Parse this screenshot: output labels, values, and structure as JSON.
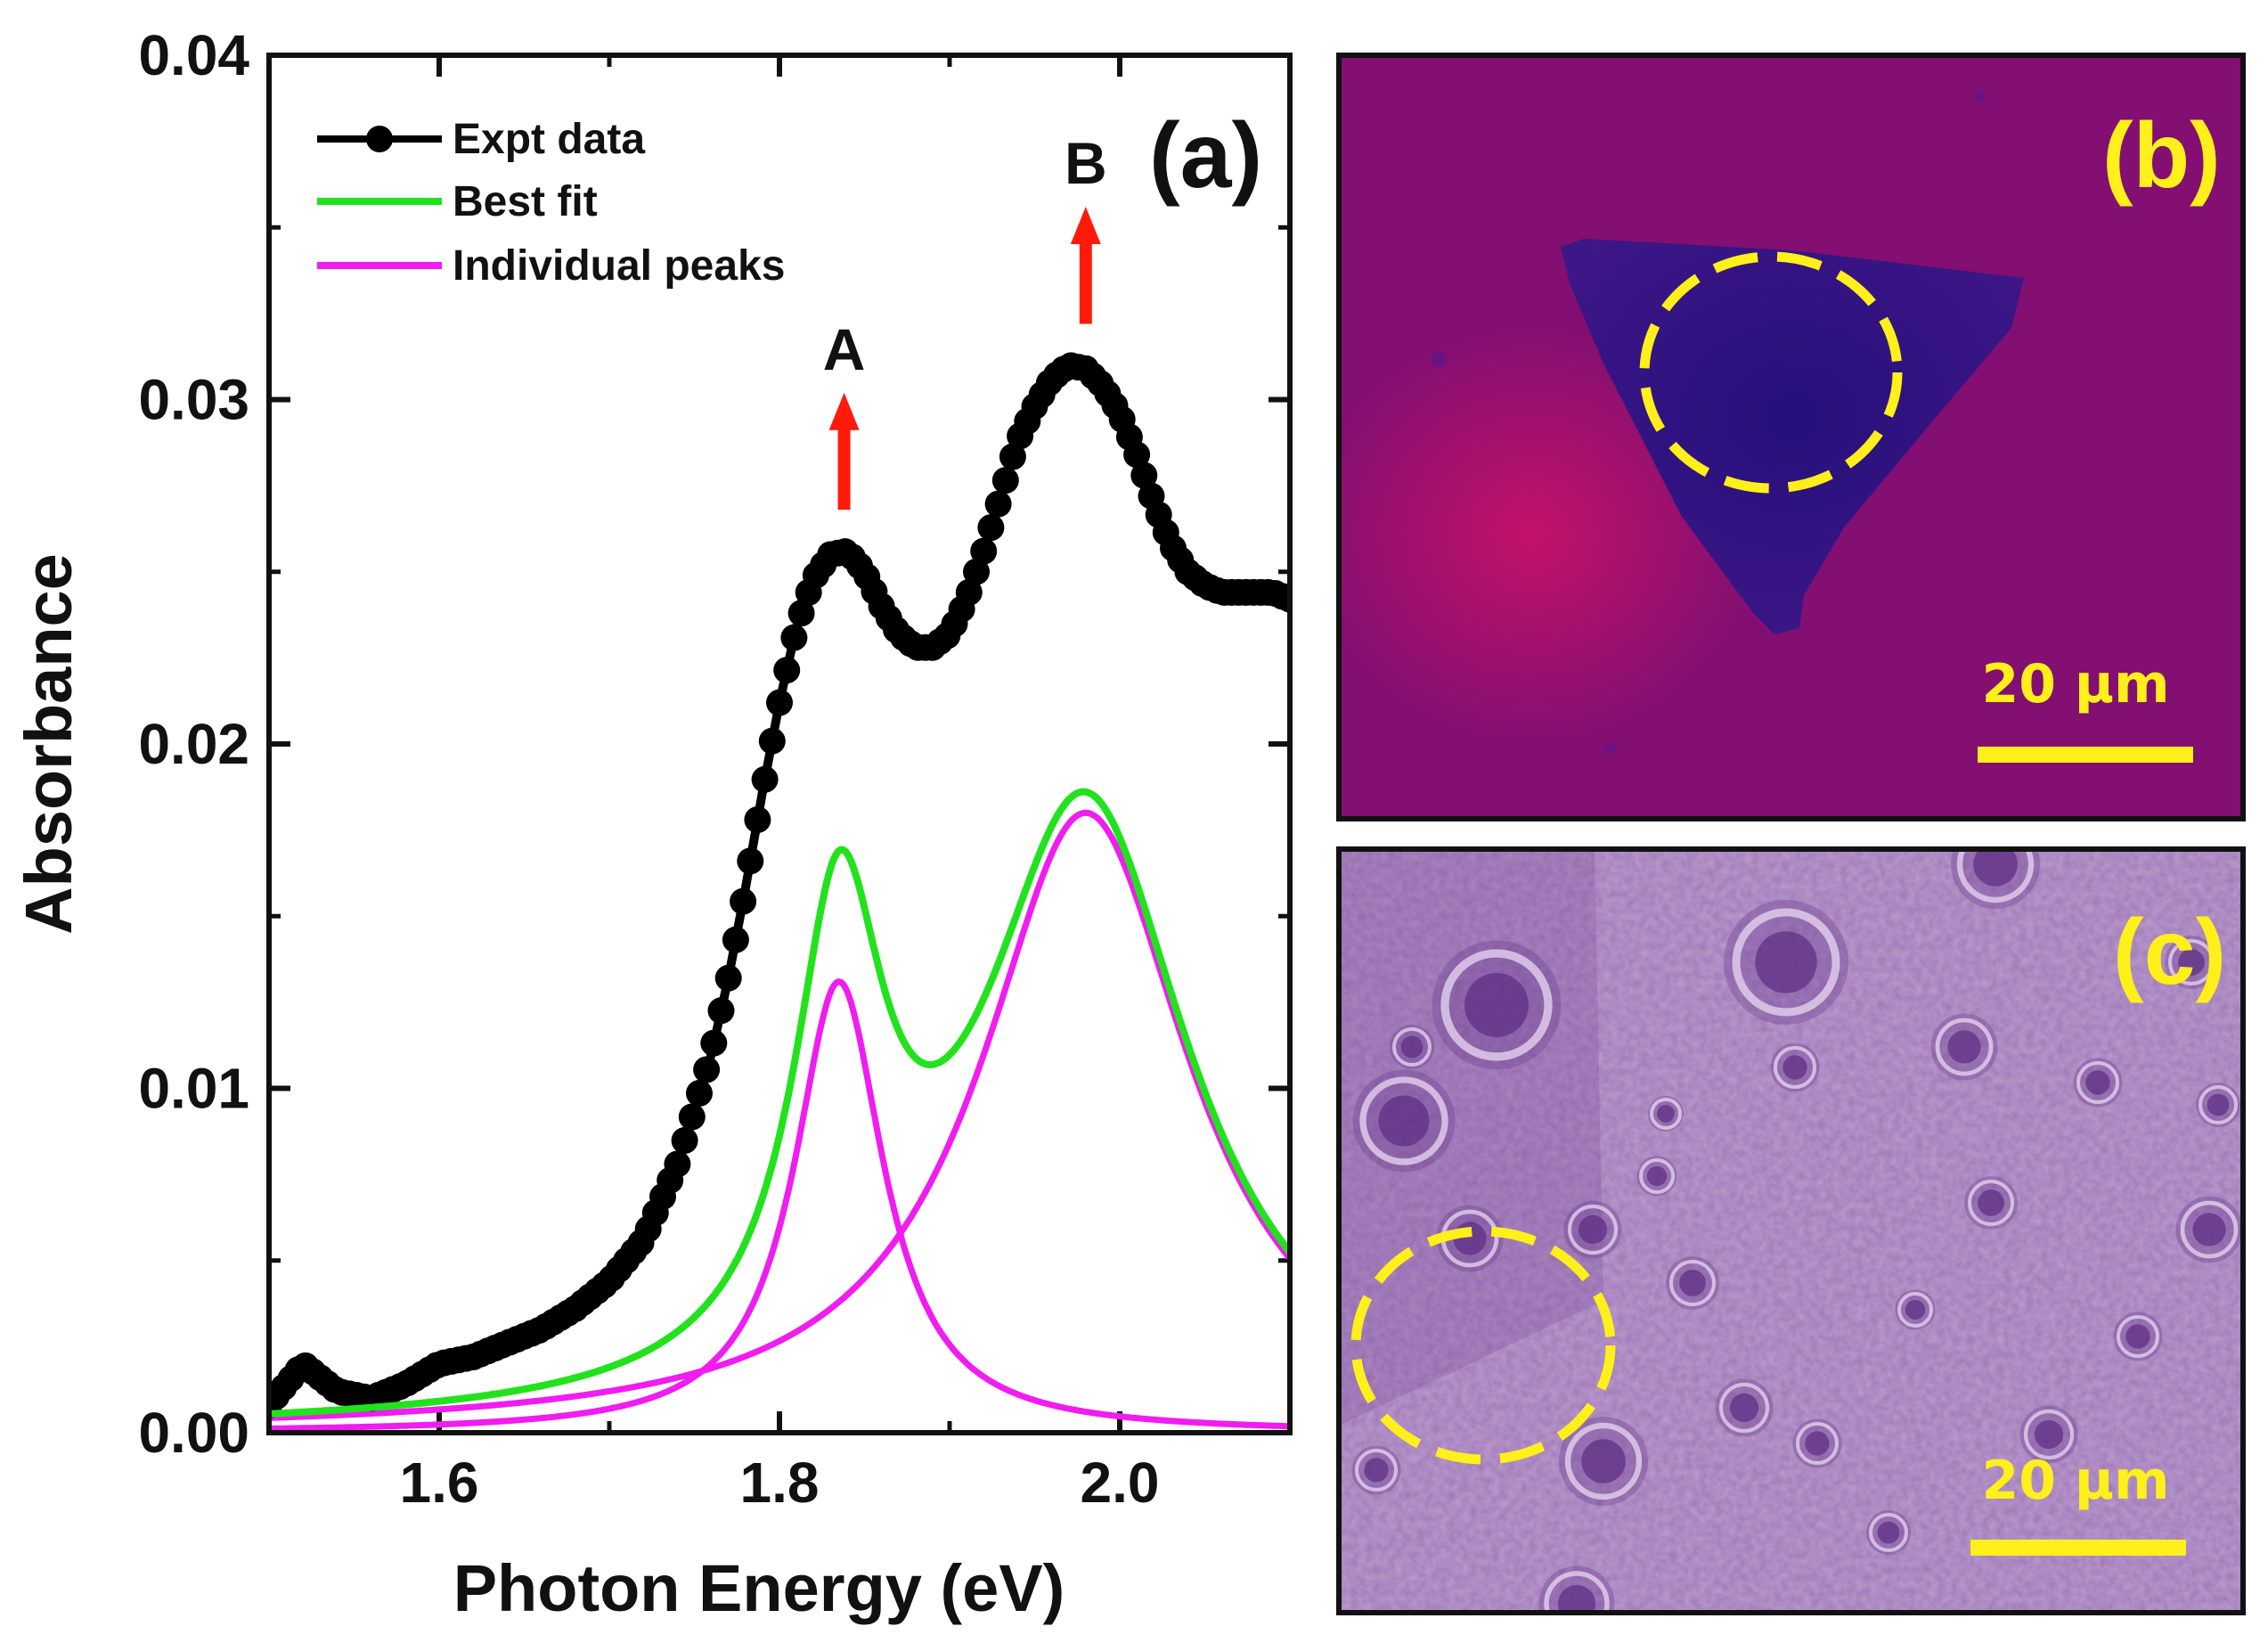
{
  "chart_data": {
    "type": "line",
    "title": "",
    "xlabel": "Photon Energy (eV)",
    "ylabel": "Absorbance",
    "xlim": [
      1.5,
      2.1
    ],
    "ylim": [
      0.0,
      0.04
    ],
    "x_ticks": [
      1.6,
      1.8,
      2.0
    ],
    "x_tick_labels": [
      "1.6",
      "1.8",
      "2.0"
    ],
    "y_ticks": [
      0.0,
      0.01,
      0.02,
      0.03,
      0.04
    ],
    "y_tick_labels": [
      "0.00",
      "0.01",
      "0.02",
      "0.03",
      "0.04"
    ],
    "legend_position": "top-left",
    "series": [
      {
        "name": "Expt data",
        "style": "line+markers",
        "color": "#000000",
        "x": [
          1.5,
          1.52,
          1.54,
          1.56,
          1.58,
          1.6,
          1.62,
          1.64,
          1.66,
          1.68,
          1.7,
          1.72,
          1.74,
          1.76,
          1.77,
          1.78,
          1.79,
          1.8,
          1.81,
          1.82,
          1.83,
          1.84,
          1.85,
          1.86,
          1.87,
          1.88,
          1.89,
          1.9,
          1.91,
          1.92,
          1.93,
          1.94,
          1.95,
          1.96,
          1.97,
          1.98,
          1.99,
          2.0,
          2.01,
          2.02,
          2.03,
          2.04,
          2.05,
          2.06,
          2.07,
          2.08,
          2.09,
          2.1
        ],
        "y": [
          0.0008,
          0.002,
          0.0012,
          0.001,
          0.0014,
          0.002,
          0.0022,
          0.0026,
          0.003,
          0.0036,
          0.0044,
          0.0056,
          0.0078,
          0.011,
          0.0132,
          0.0158,
          0.0186,
          0.0212,
          0.0234,
          0.0248,
          0.0255,
          0.0256,
          0.025,
          0.024,
          0.0232,
          0.0228,
          0.0228,
          0.0232,
          0.0242,
          0.0256,
          0.0272,
          0.0288,
          0.0298,
          0.0306,
          0.031,
          0.0309,
          0.0304,
          0.0296,
          0.0284,
          0.027,
          0.0258,
          0.025,
          0.0246,
          0.0244,
          0.0244,
          0.0244,
          0.0244,
          0.0242
        ]
      },
      {
        "name": "Best fit",
        "style": "line",
        "color": "#22e21e",
        "model": "sum of two Lorentzian peaks",
        "components": [
          "Peak A",
          "Peak B"
        ]
      },
      {
        "name": "Individual peaks",
        "style": "line",
        "color": "#f01cf0",
        "peaks": [
          {
            "name": "Peak A",
            "center": 1.835,
            "height": 0.0131,
            "hwhm": 0.032
          },
          {
            "name": "Peak B",
            "center": 1.98,
            "height": 0.018,
            "hwhm": 0.075
          }
        ]
      }
    ],
    "annotations": [
      {
        "text": "A",
        "x": 1.838,
        "arrow_from": 0.0268,
        "arrow_to": 0.0302,
        "color": "#ff1a0a"
      },
      {
        "text": "B",
        "x": 1.98,
        "arrow_from": 0.0322,
        "arrow_to": 0.0356,
        "color": "#ff1a0a"
      }
    ]
  },
  "panels": {
    "a": {
      "label": "(a)"
    },
    "b": {
      "label": "(b)",
      "scale_bar": "20 µm"
    },
    "c": {
      "label": "(c)",
      "scale_bar": "20 µm"
    }
  },
  "colors": {
    "highlight_yellow": "#ffef1a",
    "panel_b_background": "#8c0d6e",
    "panel_b_flake": "#3a1385",
    "panel_c_background": "#9c73b5"
  }
}
